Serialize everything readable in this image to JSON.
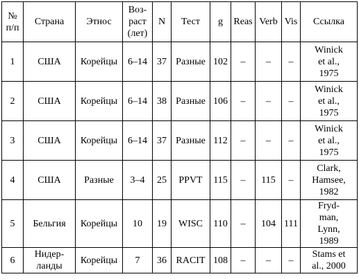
{
  "table": {
    "headers": [
      [
        "№",
        "п/п"
      ],
      [
        "Страна"
      ],
      [
        "Этнос"
      ],
      [
        "Воз-",
        "раст",
        "(лет)"
      ],
      [
        "N"
      ],
      [
        "Тест"
      ],
      [
        "g"
      ],
      [
        "Reas"
      ],
      [
        "Verb"
      ],
      [
        "Vis"
      ],
      [
        "Ссылка"
      ]
    ],
    "rows": [
      {
        "num": "1",
        "country": [
          "США"
        ],
        "ethnos": "Корейцы",
        "age": "6–14",
        "n": "37",
        "test": "Разные",
        "g": "102",
        "reas": "–",
        "verb": "–",
        "vis": "–",
        "ref": [
          "Winick",
          "et al.,",
          "1975"
        ]
      },
      {
        "num": "2",
        "country": [
          "США"
        ],
        "ethnos": "Корейцы",
        "age": "6–14",
        "n": "38",
        "test": "Разные",
        "g": "106",
        "reas": "–",
        "verb": "–",
        "vis": "–",
        "ref": [
          "Winick",
          "et al.,",
          "1975"
        ]
      },
      {
        "num": "3",
        "country": [
          "США"
        ],
        "ethnos": "Корейцы",
        "age": "6–14",
        "n": "37",
        "test": "Разные",
        "g": "112",
        "reas": "–",
        "verb": "–",
        "vis": "–",
        "ref": [
          "Winick",
          "et al.,",
          "1975"
        ]
      },
      {
        "num": "4",
        "country": [
          "США"
        ],
        "ethnos": "Разные",
        "age": "3–4",
        "n": "25",
        "test": "PPVT",
        "g": "115",
        "reas": "–",
        "verb": "115",
        "vis": "–",
        "ref": [
          "Clark,",
          "Hamsee,",
          "1982"
        ]
      },
      {
        "num": "5",
        "country": [
          "Бельгия"
        ],
        "ethnos": "Корейцы",
        "age": "10",
        "n": "19",
        "test": "WISC",
        "g": "110",
        "reas": "–",
        "verb": "104",
        "vis": "111",
        "ref": [
          "Fryd-",
          "man,",
          "Lynn,",
          "1989"
        ]
      },
      {
        "num": "6",
        "country": [
          "Нидер-",
          "ланды"
        ],
        "ethnos": "Корейцы",
        "age": "7",
        "n": "36",
        "test": "RACIT",
        "g": "108",
        "reas": "–",
        "verb": "–",
        "vis": "–",
        "ref": [
          "Stams et",
          "al., 2000"
        ]
      }
    ]
  }
}
